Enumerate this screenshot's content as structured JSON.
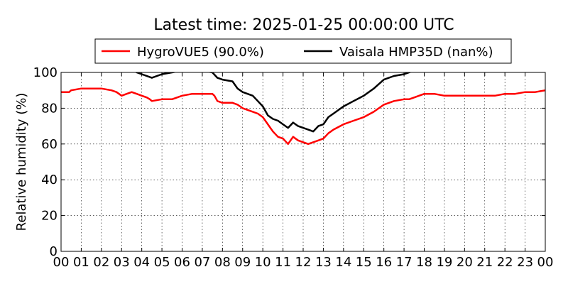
{
  "chart_data": {
    "type": "line",
    "title": "Latest time: 2025-01-25 00:00:00 UTC",
    "xlabel": "",
    "ylabel": "Relative humidity (%)",
    "xlim": [
      0,
      24
    ],
    "ylim": [
      0,
      100
    ],
    "x_ticks": [
      "00",
      "01",
      "02",
      "03",
      "04",
      "05",
      "06",
      "07",
      "08",
      "09",
      "10",
      "11",
      "12",
      "13",
      "14",
      "15",
      "16",
      "17",
      "18",
      "19",
      "20",
      "21",
      "22",
      "23",
      "00"
    ],
    "y_ticks": [
      "0",
      "20",
      "40",
      "60",
      "80",
      "100"
    ],
    "grid": true,
    "legend_position": "top",
    "series": [
      {
        "name": "HygroVUE5 (90.0%)",
        "color": "#ff0000",
        "x": [
          0,
          0.4,
          0.5,
          1,
          1.5,
          2,
          2.5,
          2.75,
          3,
          3.25,
          3.5,
          3.75,
          4,
          4.25,
          4.4,
          4.5,
          5,
          5.5,
          5.75,
          6,
          6.5,
          7,
          7.5,
          7.6,
          7.75,
          8,
          8.5,
          8.75,
          9,
          9.5,
          9.75,
          10,
          10.25,
          10.5,
          10.75,
          11,
          11.25,
          11.5,
          11.75,
          12,
          12.25,
          12.5,
          12.75,
          13,
          13.25,
          13.5,
          14,
          14.5,
          15,
          15.5,
          16,
          16.5,
          17,
          17.25,
          17.5,
          18,
          18.5,
          19,
          19.5,
          20,
          20.5,
          21,
          21.5,
          22,
          22.5,
          23,
          23.5,
          24
        ],
        "y": [
          89,
          89,
          90,
          91,
          91,
          91,
          90,
          89,
          87,
          88,
          89,
          88,
          87,
          86,
          85,
          84,
          85,
          85,
          86,
          87,
          88,
          88,
          88,
          87,
          84,
          83,
          83,
          82,
          80,
          78,
          77,
          75,
          71,
          67,
          64,
          63,
          60,
          64,
          62,
          61,
          60,
          61,
          62,
          63,
          66,
          68,
          71,
          73,
          75,
          78,
          82,
          84,
          85,
          85,
          86,
          88,
          88,
          87,
          87,
          87,
          87,
          87,
          87,
          88,
          88,
          89,
          89,
          90
        ]
      },
      {
        "name": "Vaisala HMP35D (nan%)",
        "color": "#000000",
        "x": [
          3.6,
          3.75,
          4,
          4.5,
          5,
          5.5,
          6,
          6.5,
          7,
          7.5,
          7.75,
          8,
          8.5,
          8.75,
          9,
          9.5,
          9.75,
          10,
          10.25,
          10.5,
          10.75,
          11,
          11.25,
          11.5,
          11.75,
          12,
          12.25,
          12.5,
          12.75,
          13,
          13.25,
          13.5,
          14,
          14.5,
          15,
          15.5,
          16,
          16.5,
          17,
          17.25,
          17.5
        ],
        "y": [
          101,
          100,
          99,
          97,
          99,
          100,
          101,
          101,
          101,
          100,
          97,
          96,
          95,
          91,
          89,
          87,
          84,
          81,
          76,
          74,
          73,
          71,
          69,
          72,
          70,
          69,
          68,
          67,
          70,
          71,
          75,
          77,
          81,
          84,
          87,
          91,
          96,
          98,
          99,
          100,
          101
        ]
      }
    ]
  }
}
